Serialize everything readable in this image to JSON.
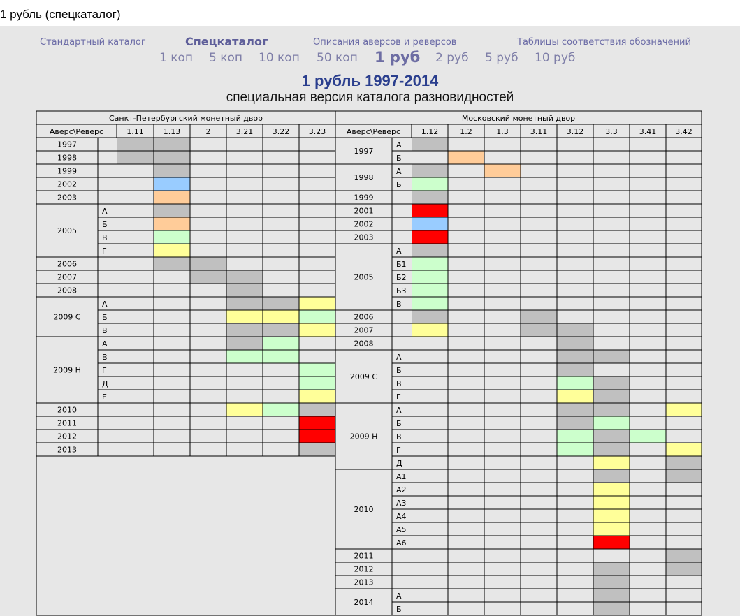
{
  "page": {
    "heading": "1 рубль (спецкаталог)"
  },
  "topnav": [
    {
      "label": "Стандартный каталог",
      "active": false
    },
    {
      "label": "Спецкаталог",
      "active": true
    },
    {
      "label": "Описания аверсов и реверсов",
      "active": false
    },
    {
      "label": "Таблицы соответствия обозначений",
      "active": false
    }
  ],
  "subnav": [
    {
      "label": "1 коп",
      "active": false
    },
    {
      "label": "5 коп",
      "active": false
    },
    {
      "label": "10 коп",
      "active": false
    },
    {
      "label": "50 коп",
      "active": false
    },
    {
      "label": "1 руб",
      "active": true
    },
    {
      "label": "2 руб",
      "active": false
    },
    {
      "label": "5 руб",
      "active": false
    },
    {
      "label": "10 руб",
      "active": false
    }
  ],
  "catalog": {
    "title": "1 рубль 1997-2014",
    "subtitle": "специальная версия каталога разновидностей"
  },
  "colors": {
    "gray": "#c0c0c0",
    "orange": "#ffcc99",
    "blue": "#99ccff",
    "green": "#ccffcc",
    "yellow": "#ffff99",
    "red": "#ff0000",
    "grid_line": "#000000",
    "cell_bg": "#e7e7e7"
  },
  "spb": {
    "mint": "Санкт-Петербургский монетный двор",
    "corner": "Аверс\\Реверс",
    "columns": [
      "1.11",
      "1.13",
      "2",
      "3.21",
      "3.22",
      "3.23"
    ],
    "years": [
      {
        "label": "1997",
        "rows": [
          {
            "sub": "",
            "cells": [
              "gray",
              "gray",
              "",
              "",
              "",
              ""
            ]
          }
        ]
      },
      {
        "label": "1998",
        "rows": [
          {
            "sub": "",
            "cells": [
              "gray",
              "gray",
              "",
              "",
              "",
              ""
            ]
          }
        ]
      },
      {
        "label": "1999",
        "rows": [
          {
            "sub": "",
            "cells": [
              "",
              "gray",
              "",
              "",
              "",
              ""
            ]
          }
        ]
      },
      {
        "label": "2002",
        "rows": [
          {
            "sub": "",
            "cells": [
              "",
              "blue",
              "",
              "",
              "",
              ""
            ]
          }
        ]
      },
      {
        "label": "2003",
        "rows": [
          {
            "sub": "",
            "cells": [
              "",
              "orange",
              "",
              "",
              "",
              ""
            ]
          }
        ]
      },
      {
        "label": "2005",
        "rows": [
          {
            "sub": "А",
            "cells": [
              "",
              "gray",
              "",
              "",
              "",
              ""
            ]
          },
          {
            "sub": "Б",
            "cells": [
              "",
              "orange",
              "",
              "",
              "",
              ""
            ]
          },
          {
            "sub": "В",
            "cells": [
              "",
              "green",
              "",
              "",
              "",
              ""
            ]
          },
          {
            "sub": "Г",
            "cells": [
              "",
              "yellow",
              "",
              "",
              "",
              ""
            ]
          }
        ]
      },
      {
        "label": "2006",
        "rows": [
          {
            "sub": "",
            "cells": [
              "",
              "gray",
              "gray",
              "",
              "",
              ""
            ]
          }
        ]
      },
      {
        "label": "2007",
        "rows": [
          {
            "sub": "",
            "cells": [
              "",
              "",
              "gray",
              "gray",
              "",
              ""
            ]
          }
        ]
      },
      {
        "label": "2008",
        "rows": [
          {
            "sub": "",
            "cells": [
              "",
              "",
              "",
              "gray",
              "",
              ""
            ]
          }
        ]
      },
      {
        "label": "2009 С",
        "rows": [
          {
            "sub": "А",
            "cells": [
              "",
              "",
              "",
              "gray",
              "gray",
              "yellow"
            ]
          },
          {
            "sub": "Б",
            "cells": [
              "",
              "",
              "",
              "yellow",
              "yellow",
              "green"
            ]
          },
          {
            "sub": "В",
            "cells": [
              "",
              "",
              "",
              "gray",
              "gray",
              "yellow"
            ]
          }
        ]
      },
      {
        "label": "2009 Н",
        "rows": [
          {
            "sub": "А",
            "cells": [
              "",
              "",
              "",
              "gray",
              "green",
              ""
            ]
          },
          {
            "sub": "В",
            "cells": [
              "",
              "",
              "",
              "green",
              "green",
              ""
            ]
          },
          {
            "sub": "Г",
            "cells": [
              "",
              "",
              "",
              "",
              "",
              "green"
            ]
          },
          {
            "sub": "Д",
            "cells": [
              "",
              "",
              "",
              "",
              "",
              "green"
            ]
          },
          {
            "sub": "Е",
            "cells": [
              "",
              "",
              "",
              "",
              "",
              "yellow"
            ]
          }
        ]
      },
      {
        "label": "2010",
        "rows": [
          {
            "sub": "",
            "cells": [
              "",
              "",
              "",
              "yellow",
              "green",
              "gray"
            ]
          }
        ]
      },
      {
        "label": "2011",
        "rows": [
          {
            "sub": "",
            "cells": [
              "",
              "",
              "",
              "",
              "",
              "red"
            ]
          }
        ]
      },
      {
        "label": "2012",
        "rows": [
          {
            "sub": "",
            "cells": [
              "",
              "",
              "",
              "",
              "",
              "red"
            ]
          }
        ]
      },
      {
        "label": "2013",
        "rows": [
          {
            "sub": "",
            "cells": [
              "",
              "",
              "",
              "",
              "",
              "gray"
            ]
          }
        ]
      }
    ]
  },
  "msk": {
    "mint": "Московский монетный двор",
    "corner": "Аверс\\Реверс",
    "columns": [
      "1.12",
      "1.2",
      "1.3",
      "3.11",
      "3.12",
      "3.3",
      "3.41",
      "3.42"
    ],
    "years": [
      {
        "label": "1997",
        "rows": [
          {
            "sub": "А",
            "cells": [
              "gray",
              "",
              "",
              "",
              "",
              "",
              "",
              ""
            ]
          },
          {
            "sub": "Б",
            "cells": [
              "",
              "orange",
              "",
              "",
              "",
              "",
              "",
              ""
            ]
          }
        ]
      },
      {
        "label": "1998",
        "rows": [
          {
            "sub": "А",
            "cells": [
              "gray",
              "",
              "orange",
              "",
              "",
              "",
              "",
              ""
            ]
          },
          {
            "sub": "Б",
            "cells": [
              "green",
              "",
              "",
              "",
              "",
              "",
              "",
              ""
            ]
          }
        ]
      },
      {
        "label": "1999",
        "rows": [
          {
            "sub": "",
            "cells": [
              "gray",
              "",
              "",
              "",
              "",
              "",
              "",
              ""
            ]
          }
        ]
      },
      {
        "label": "2001",
        "rows": [
          {
            "sub": "",
            "cells": [
              "red",
              "",
              "",
              "",
              "",
              "",
              "",
              ""
            ]
          }
        ]
      },
      {
        "label": "2002",
        "rows": [
          {
            "sub": "",
            "cells": [
              "blue",
              "",
              "",
              "",
              "",
              "",
              "",
              ""
            ]
          }
        ]
      },
      {
        "label": "2003",
        "rows": [
          {
            "sub": "",
            "cells": [
              "red",
              "",
              "",
              "",
              "",
              "",
              "",
              ""
            ]
          }
        ]
      },
      {
        "label": "2005",
        "rows": [
          {
            "sub": "А",
            "cells": [
              "gray",
              "",
              "",
              "",
              "",
              "",
              "",
              ""
            ]
          },
          {
            "sub": "Б1",
            "cells": [
              "green",
              "",
              "",
              "",
              "",
              "",
              "",
              ""
            ]
          },
          {
            "sub": "Б2",
            "cells": [
              "green",
              "",
              "",
              "",
              "",
              "",
              "",
              ""
            ]
          },
          {
            "sub": "Б3",
            "cells": [
              "green",
              "",
              "",
              "",
              "",
              "",
              "",
              ""
            ]
          },
          {
            "sub": "В",
            "cells": [
              "green",
              "",
              "",
              "",
              "",
              "",
              "",
              ""
            ]
          }
        ]
      },
      {
        "label": "2006",
        "rows": [
          {
            "sub": "",
            "cells": [
              "gray",
              "",
              "",
              "gray",
              "",
              "",
              "",
              ""
            ]
          }
        ]
      },
      {
        "label": "2007",
        "rows": [
          {
            "sub": "",
            "cells": [
              "yellow",
              "",
              "",
              "gray",
              "gray",
              "",
              "",
              ""
            ]
          }
        ]
      },
      {
        "label": "2008",
        "rows": [
          {
            "sub": "",
            "cells": [
              "",
              "",
              "",
              "",
              "gray",
              "",
              "",
              ""
            ]
          }
        ]
      },
      {
        "label": "2009 С",
        "rows": [
          {
            "sub": "А",
            "cells": [
              "",
              "",
              "",
              "",
              "gray",
              "gray",
              "",
              ""
            ]
          },
          {
            "sub": "Б",
            "cells": [
              "",
              "",
              "",
              "",
              "gray",
              "",
              "",
              ""
            ]
          },
          {
            "sub": "В",
            "cells": [
              "",
              "",
              "",
              "",
              "green",
              "gray",
              "",
              ""
            ]
          },
          {
            "sub": "Г",
            "cells": [
              "",
              "",
              "",
              "",
              "yellow",
              "gray",
              "",
              ""
            ]
          }
        ]
      },
      {
        "label": "2009 Н",
        "rows": [
          {
            "sub": "А",
            "cells": [
              "",
              "",
              "",
              "",
              "gray",
              "gray",
              "",
              "yellow"
            ]
          },
          {
            "sub": "Б",
            "cells": [
              "",
              "",
              "",
              "",
              "gray",
              "green",
              "",
              ""
            ]
          },
          {
            "sub": "В",
            "cells": [
              "",
              "",
              "",
              "",
              "green",
              "gray",
              "green",
              ""
            ]
          },
          {
            "sub": "Г",
            "cells": [
              "",
              "",
              "",
              "",
              "green",
              "gray",
              "",
              "yellow"
            ]
          },
          {
            "sub": "Д",
            "cells": [
              "",
              "",
              "",
              "",
              "",
              "yellow",
              "",
              "gray"
            ]
          }
        ]
      },
      {
        "label": "2010",
        "rows": [
          {
            "sub": "А1",
            "cells": [
              "",
              "",
              "",
              "",
              "",
              "gray",
              "",
              "gray"
            ]
          },
          {
            "sub": "А2",
            "cells": [
              "",
              "",
              "",
              "",
              "",
              "yellow",
              "",
              ""
            ]
          },
          {
            "sub": "А3",
            "cells": [
              "",
              "",
              "",
              "",
              "",
              "yellow",
              "",
              ""
            ]
          },
          {
            "sub": "А4",
            "cells": [
              "",
              "",
              "",
              "",
              "",
              "yellow",
              "",
              ""
            ]
          },
          {
            "sub": "А5",
            "cells": [
              "",
              "",
              "",
              "",
              "",
              "yellow",
              "",
              ""
            ]
          },
          {
            "sub": "А6",
            "cells": [
              "",
              "",
              "",
              "",
              "",
              "red",
              "",
              ""
            ]
          }
        ]
      },
      {
        "label": "2011",
        "rows": [
          {
            "sub": "",
            "cells": [
              "",
              "",
              "",
              "",
              "",
              "",
              "",
              "gray"
            ]
          }
        ]
      },
      {
        "label": "2012",
        "rows": [
          {
            "sub": "",
            "cells": [
              "",
              "",
              "",
              "",
              "",
              "gray",
              "",
              "gray"
            ]
          }
        ]
      },
      {
        "label": "2013",
        "rows": [
          {
            "sub": "",
            "cells": [
              "",
              "",
              "",
              "",
              "",
              "gray",
              "",
              ""
            ]
          }
        ]
      },
      {
        "label": "2014",
        "rows": [
          {
            "sub": "А",
            "cells": [
              "",
              "",
              "",
              "",
              "",
              "gray",
              "",
              ""
            ]
          },
          {
            "sub": "Б",
            "cells": [
              "",
              "",
              "",
              "",
              "",
              "gray",
              "",
              ""
            ]
          }
        ]
      }
    ]
  }
}
